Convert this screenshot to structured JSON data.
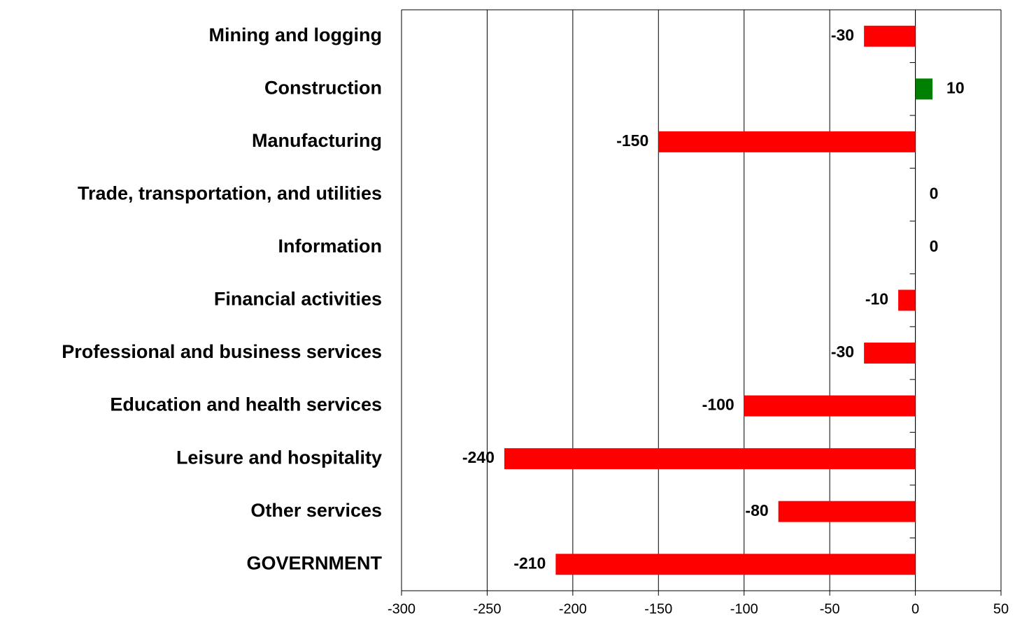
{
  "chart_data": {
    "type": "barh",
    "categories": [
      "Mining and logging",
      "Construction",
      "Manufacturing",
      "Trade, transportation, and utilities",
      "Information",
      "Financial activities",
      "Professional and business services",
      "Education and health services",
      "Leisure and hospitality",
      "Other services",
      "GOVERNMENT"
    ],
    "values": [
      -30,
      10,
      -150,
      0,
      0,
      -10,
      -30,
      -100,
      -240,
      -80,
      -210
    ],
    "negative_color": "#ff0000",
    "positive_color": "#008000",
    "xlim": [
      -300,
      50
    ],
    "xticks": [
      -300,
      -250,
      -200,
      -150,
      -100,
      -50,
      0,
      50
    ],
    "grid": true
  }
}
